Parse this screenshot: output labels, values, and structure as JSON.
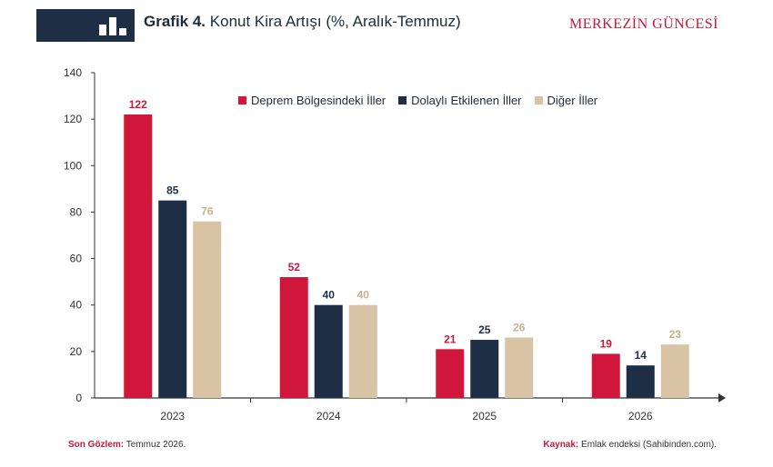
{
  "header": {
    "title_bold": "Grafik 4.",
    "title_rest": " Konut Kira Artışı (%, Aralık-Temmuz)",
    "brand": "MERKEZİN GÜNCESİ",
    "icon": "bar-chart-icon"
  },
  "footer": {
    "left_label": "Son Gözlem:",
    "left_value": " Temmuz 2026.",
    "right_label": "Kaynak:",
    "right_value": " Emlak endeksi (Sahibinden.com)."
  },
  "colors": {
    "series1": "#d0163a",
    "series2": "#1e2e44",
    "series3": "#d8c3a5",
    "label3": "#c9b08a"
  },
  "chart_data": {
    "type": "bar",
    "categories": [
      "2023",
      "2024",
      "2025",
      "2026"
    ],
    "series": [
      {
        "name": "Deprem Bölgesindeki İller",
        "values": [
          122,
          52,
          21,
          19
        ]
      },
      {
        "name": "Dolaylı Etkilenen İller",
        "values": [
          85,
          40,
          25,
          14
        ]
      },
      {
        "name": "Diğer İller",
        "values": [
          76,
          40,
          26,
          23
        ]
      }
    ],
    "yticks": [
      0,
      20,
      40,
      60,
      80,
      100,
      120,
      140
    ],
    "ylim": [
      0,
      140
    ],
    "grid": false,
    "legend_position": "top-center"
  }
}
